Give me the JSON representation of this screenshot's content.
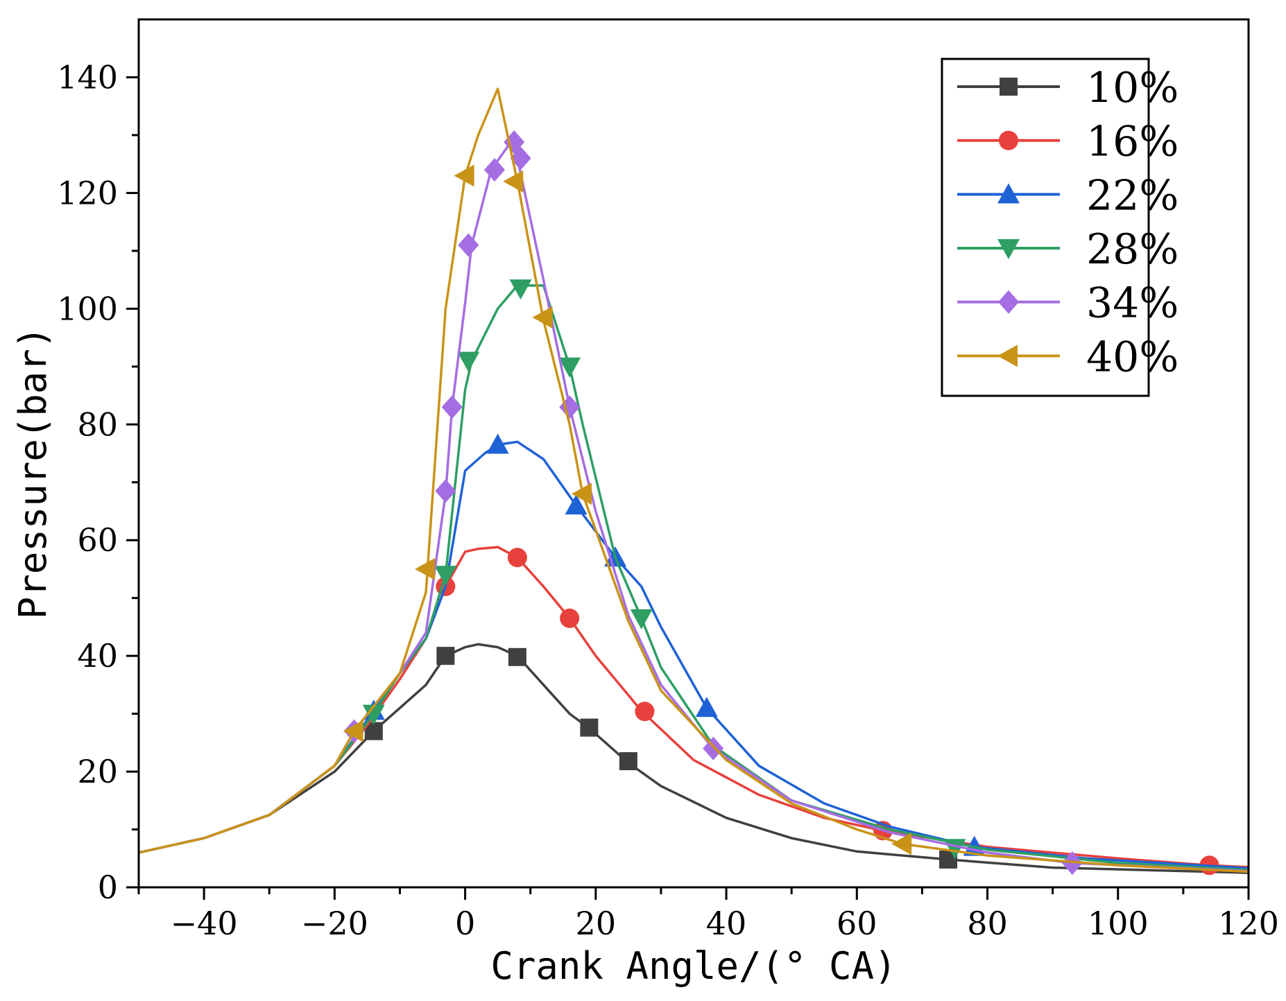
{
  "chart_data": {
    "type": "line",
    "title": "",
    "xlabel": "Crank Angle/(° CA)",
    "ylabel": "Pressure(bar)",
    "xlim": [
      -50,
      120
    ],
    "ylim": [
      0,
      150
    ],
    "xticks": [
      -40,
      -20,
      0,
      20,
      40,
      60,
      80,
      100,
      120
    ],
    "yticks": [
      0,
      20,
      40,
      60,
      80,
      100,
      120,
      140
    ],
    "xtick_labels": [
      "−40",
      "−20",
      "0",
      "20",
      "40",
      "60",
      "80",
      "100",
      "120"
    ],
    "ytick_labels": [
      "0",
      "20",
      "40",
      "60",
      "80",
      "100",
      "120",
      "140"
    ],
    "grid": false,
    "legend_position": "top-right",
    "series": [
      {
        "name": "10%",
        "color": "#404040",
        "marker": "square",
        "x": [
          -50,
          -40,
          -30,
          -20,
          -14,
          -10,
          -6,
          -3,
          0,
          2,
          5,
          8,
          12,
          16,
          19,
          25,
          30,
          40,
          50,
          60,
          74,
          90,
          120
        ],
        "y": [
          6,
          8.5,
          12.5,
          20,
          27,
          31,
          35,
          40,
          41.5,
          42,
          41.5,
          40,
          35,
          30,
          27.5,
          21.5,
          17.5,
          12,
          8.5,
          6.2,
          4.8,
          3.4,
          2.5
        ],
        "markers_x": [
          -14,
          -3,
          8,
          19,
          25,
          74
        ],
        "markers_y": [
          27,
          40,
          39.8,
          27.6,
          21.8,
          4.8
        ]
      },
      {
        "name": "16%",
        "color": "#e8403c",
        "marker": "circle",
        "x": [
          -50,
          -40,
          -30,
          -20,
          -15,
          -10,
          -6,
          -3,
          0,
          2,
          5,
          8,
          12,
          16,
          20,
          27,
          35,
          45,
          55,
          64,
          80,
          100,
          114,
          120
        ],
        "y": [
          6,
          8.5,
          12.5,
          21,
          28,
          36,
          43,
          52,
          58,
          58.5,
          58.8,
          57,
          52,
          46.5,
          40,
          30.5,
          22,
          16,
          12,
          9.8,
          7,
          5,
          3.8,
          3.5
        ],
        "markers_x": [
          -3,
          8,
          16,
          27.5,
          64,
          114
        ],
        "markers_y": [
          52,
          57,
          46.5,
          30.4,
          9.8,
          3.8
        ]
      },
      {
        "name": "22%",
        "color": "#1f62d6",
        "marker": "triangle-up",
        "x": [
          -50,
          -40,
          -30,
          -20,
          -14,
          -10,
          -6,
          -3,
          0,
          3,
          5,
          8,
          12,
          17,
          23,
          27,
          30,
          37,
          45,
          55,
          65,
          78,
          95,
          120
        ],
        "y": [
          6,
          8.5,
          12.5,
          21,
          30.5,
          37,
          43,
          52,
          72,
          75,
          76.5,
          77,
          74,
          66,
          57,
          52,
          45,
          31,
          21,
          14.5,
          10.5,
          7,
          5,
          3.3
        ],
        "markers_x": [
          -14,
          5,
          17,
          23,
          37,
          78
        ],
        "markers_y": [
          30.5,
          76.5,
          66,
          57,
          31,
          7
        ]
      },
      {
        "name": "28%",
        "color": "#2e9e63",
        "marker": "triangle-down",
        "x": [
          -50,
          -40,
          -30,
          -20,
          -14,
          -10,
          -6,
          -3,
          0,
          1,
          5,
          8,
          12,
          16,
          18,
          23,
          27,
          30,
          38,
          50,
          65,
          80,
          100,
          120
        ],
        "y": [
          6,
          8.5,
          12.5,
          21,
          30,
          37,
          43,
          54,
          86,
          91,
          100,
          104,
          104,
          90,
          80,
          57,
          46.5,
          38,
          24.5,
          15,
          10,
          6.5,
          4.2,
          3
        ],
        "markers_x": [
          -14,
          -3,
          0.5,
          8.5,
          16,
          27,
          75
        ],
        "markers_y": [
          30,
          54,
          91,
          103.5,
          90,
          46.5,
          6.8
        ]
      },
      {
        "name": "34%",
        "color": "#a56de2",
        "marker": "diamond",
        "x": [
          -50,
          -40,
          -30,
          -20,
          -17,
          -10,
          -6,
          -3,
          -2,
          0,
          1,
          4,
          7,
          8,
          12,
          16,
          20,
          25,
          30,
          38,
          50,
          65,
          80,
          93,
          120
        ],
        "y": [
          6,
          8.5,
          12.5,
          21,
          27,
          37,
          44,
          68,
          83,
          101,
          111,
          124,
          128.8,
          126,
          105,
          83,
          65,
          47,
          35,
          24,
          15,
          9.5,
          6,
          4.2,
          2.8
        ],
        "markers_x": [
          -17,
          -3,
          -2,
          0.5,
          4.5,
          7.5,
          8.5,
          16,
          38,
          93
        ],
        "markers_y": [
          27,
          68.5,
          83,
          111,
          124,
          128.8,
          126,
          83,
          24,
          4.2
        ]
      },
      {
        "name": "40%",
        "color": "#c99318",
        "marker": "triangle-left",
        "x": [
          -50,
          -40,
          -30,
          -20,
          -17,
          -10,
          -6,
          -3,
          0,
          2,
          5,
          8,
          12,
          16,
          18,
          25,
          30,
          40,
          50,
          60,
          67,
          80,
          100,
          120
        ],
        "y": [
          6,
          8.5,
          12.5,
          21,
          27,
          37,
          51,
          100,
          123,
          130,
          138,
          122,
          98,
          80,
          68,
          46,
          34,
          22,
          14.5,
          10,
          7.5,
          5.5,
          3.8,
          2.7
        ],
        "markers_x": [
          -17,
          -6,
          0,
          7.5,
          12,
          18,
          67
        ],
        "markers_y": [
          27,
          55,
          123,
          122,
          98.5,
          68,
          7.5
        ]
      }
    ]
  }
}
